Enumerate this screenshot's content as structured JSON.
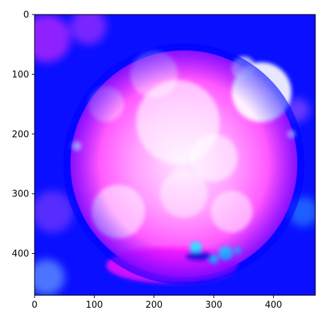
{
  "chart_data": {
    "type": "heatmap",
    "title": "",
    "xlabel": "",
    "ylabel": "",
    "xlim": [
      0,
      470
    ],
    "ylim": [
      470,
      0
    ],
    "x_ticks": [
      0,
      100,
      200,
      300,
      400
    ],
    "y_ticks": [
      0,
      100,
      200,
      300,
      400
    ],
    "grid": false,
    "legend": "none",
    "image": {
      "description_colors": [
        "#0000ff",
        "#ff00ff",
        "#ffffff",
        "#00ffff"
      ],
      "background_color": "#0a10ff",
      "disk_color": "#ff3cff",
      "highlight_color": "#ffffff",
      "accent_color": "#22e8ff",
      "disk_center": [
        250,
        250
      ],
      "disk_radius": 190
    }
  }
}
